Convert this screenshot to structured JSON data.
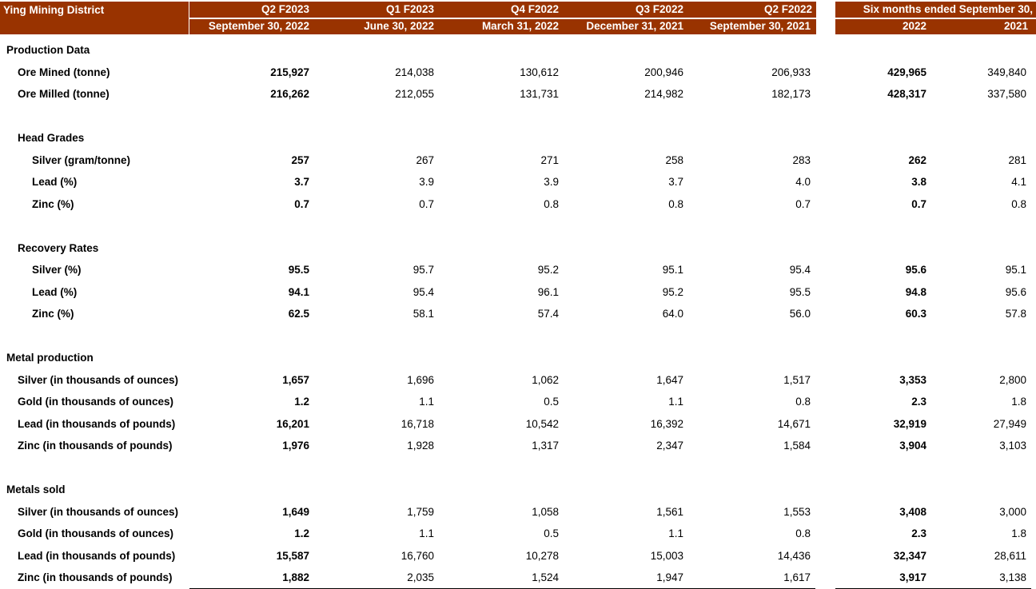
{
  "header": {
    "title": "Ying Mining District",
    "periods": [
      "Q2 F2023",
      "Q1 F2023",
      "Q4 F2022",
      "Q3 F2022",
      "Q2 F2022"
    ],
    "dates": [
      "September 30, 2022",
      "June 30, 2022",
      "March 31, 2022",
      "December 31, 2021",
      "September 30, 2021"
    ],
    "six_months": "Six months ended September 30,",
    "six_years": [
      "2022",
      "2021"
    ]
  },
  "accent_color": "#993300",
  "rows": [
    {
      "label": "Production Data",
      "level": 0,
      "values": []
    },
    {
      "label": "Ore Mined (tonne)",
      "level": 1,
      "values": [
        "215,927",
        "214,038",
        "130,612",
        "200,946",
        "206,933",
        "429,965",
        "349,840"
      ]
    },
    {
      "label": "Ore Milled (tonne)",
      "level": 1,
      "values": [
        "216,262",
        "212,055",
        "131,731",
        "214,982",
        "182,173",
        "428,317",
        "337,580"
      ]
    },
    {
      "label": "",
      "level": 0,
      "values": []
    },
    {
      "label": "Head Grades",
      "level": 1,
      "values": []
    },
    {
      "label": "Silver (gram/tonne)",
      "level": 2,
      "values": [
        "257",
        "267",
        "271",
        "258",
        "283",
        "262",
        "281"
      ]
    },
    {
      "label": "Lead  (%)",
      "level": 2,
      "values": [
        "3.7",
        "3.9",
        "3.9",
        "3.7",
        "4.0",
        "3.8",
        "4.1"
      ]
    },
    {
      "label": "Zinc (%)",
      "level": 2,
      "values": [
        "0.7",
        "0.7",
        "0.8",
        "0.8",
        "0.7",
        "0.7",
        "0.8"
      ]
    },
    {
      "label": "",
      "level": 0,
      "values": []
    },
    {
      "label": "Recovery Rates",
      "level": 1,
      "values": []
    },
    {
      "label": "Silver  (%)",
      "level": 2,
      "values": [
        "95.5",
        "95.7",
        "95.2",
        "95.1",
        "95.4",
        "95.6",
        "95.1"
      ]
    },
    {
      "label": "Lead  (%)",
      "level": 2,
      "values": [
        "94.1",
        "95.4",
        "96.1",
        "95.2",
        "95.5",
        "94.8",
        "95.6"
      ]
    },
    {
      "label": "Zinc (%)",
      "level": 2,
      "values": [
        "62.5",
        "58.1",
        "57.4",
        "64.0",
        "56.0",
        "60.3",
        "57.8"
      ]
    },
    {
      "label": "",
      "level": 0,
      "values": []
    },
    {
      "label": "Metal production",
      "level": 0,
      "values": []
    },
    {
      "label": "Silver (in thousands of ounces)",
      "level": 1,
      "values": [
        "1,657",
        "1,696",
        "1,062",
        "1,647",
        "1,517",
        "3,353",
        "2,800"
      ]
    },
    {
      "label": "Gold (in thousands of ounces)",
      "level": 1,
      "values": [
        "1.2",
        "1.1",
        "0.5",
        "1.1",
        "0.8",
        "2.3",
        "1.8"
      ]
    },
    {
      "label": "Lead (in thousands of pounds)",
      "level": 1,
      "values": [
        "16,201",
        "16,718",
        "10,542",
        "16,392",
        "14,671",
        "32,919",
        "27,949"
      ]
    },
    {
      "label": "Zinc (in thousands of pounds)",
      "level": 1,
      "values": [
        "1,976",
        "1,928",
        "1,317",
        "2,347",
        "1,584",
        "3,904",
        "3,103"
      ]
    },
    {
      "label": "",
      "level": 0,
      "values": []
    },
    {
      "label": "Metals sold",
      "level": 0,
      "values": []
    },
    {
      "label": "Silver (in thousands of ounces)",
      "level": 1,
      "values": [
        "1,649",
        "1,759",
        "1,058",
        "1,561",
        "1,553",
        "3,408",
        "3,000"
      ]
    },
    {
      "label": "Gold  (in thousands of ounces)",
      "level": 1,
      "values": [
        "1.2",
        "1.1",
        "0.5",
        "1.1",
        "0.8",
        "2.3",
        "1.8"
      ]
    },
    {
      "label": "Lead (in thousands of pounds)",
      "level": 1,
      "values": [
        "15,587",
        "16,760",
        "10,278",
        "15,003",
        "14,436",
        "32,347",
        "28,611"
      ]
    },
    {
      "label": "Zinc  (in thousands of pounds)",
      "level": 1,
      "values": [
        "1,882",
        "2,035",
        "1,524",
        "1,947",
        "1,617",
        "3,917",
        "3,138"
      ]
    }
  ]
}
